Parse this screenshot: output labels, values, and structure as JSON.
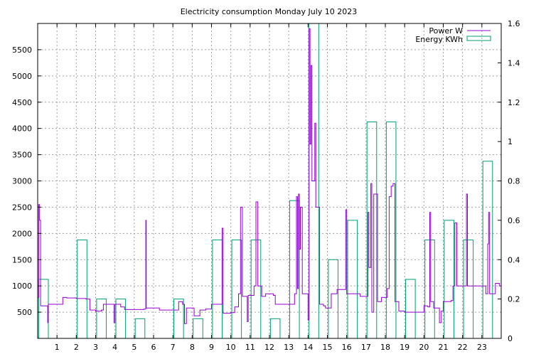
{
  "chart_data": {
    "type": "line",
    "title": "Electricity consumption Monday July 10 2023",
    "xlabel": "",
    "ylabel": "",
    "x_ticks": [
      "1",
      "2",
      "3",
      "4",
      "5",
      "6",
      "7",
      "8",
      "9",
      "10",
      "11",
      "12",
      "13",
      "14",
      "15",
      "16",
      "17",
      "18",
      "19",
      "20",
      "21",
      "22",
      "23"
    ],
    "xlim": [
      0,
      24
    ],
    "ylim_left": [
      0,
      6000
    ],
    "ylim_right": [
      0,
      1.6
    ],
    "y_ticks_left": [
      "500",
      "1000",
      "1500",
      "2000",
      "2500",
      "3000",
      "3500",
      "4000",
      "4500",
      "5000",
      "5500"
    ],
    "y_ticks_right": [
      "0",
      "0.2",
      "0.4",
      "0.6",
      "0.8",
      "1",
      "1.2",
      "1.4",
      "1.6"
    ],
    "grid": true,
    "legend_position": "top-right",
    "colors": {
      "power": "#9400d3",
      "energy": "#009e73"
    },
    "series": [
      {
        "name": "Power W",
        "axis": "left",
        "points": [
          [
            0.0,
            780
          ],
          [
            0.05,
            2550
          ],
          [
            0.1,
            2250
          ],
          [
            0.15,
            620
          ],
          [
            0.5,
            620
          ],
          [
            0.52,
            300
          ],
          [
            0.55,
            650
          ],
          [
            1.0,
            650
          ],
          [
            1.3,
            780
          ],
          [
            1.5,
            770
          ],
          [
            2.0,
            760
          ],
          [
            2.5,
            750
          ],
          [
            2.7,
            540
          ],
          [
            3.0,
            520
          ],
          [
            3.3,
            540
          ],
          [
            3.4,
            650
          ],
          [
            3.9,
            650
          ],
          [
            3.95,
            300
          ],
          [
            4.0,
            650
          ],
          [
            4.3,
            600
          ],
          [
            4.5,
            550
          ],
          [
            5.0,
            550
          ],
          [
            5.5,
            560
          ],
          [
            5.6,
            2250
          ],
          [
            5.62,
            580
          ],
          [
            6.0,
            580
          ],
          [
            6.3,
            540
          ],
          [
            7.0,
            540
          ],
          [
            7.3,
            700
          ],
          [
            7.5,
            650
          ],
          [
            7.6,
            280
          ],
          [
            7.7,
            580
          ],
          [
            8.0,
            580
          ],
          [
            8.1,
            430
          ],
          [
            8.4,
            540
          ],
          [
            8.7,
            560
          ],
          [
            9.0,
            650
          ],
          [
            9.5,
            650
          ],
          [
            9.55,
            2100
          ],
          [
            9.6,
            480
          ],
          [
            9.8,
            480
          ],
          [
            10.0,
            490
          ],
          [
            10.2,
            600
          ],
          [
            10.4,
            850
          ],
          [
            10.5,
            2500
          ],
          [
            10.6,
            800
          ],
          [
            10.8,
            800
          ],
          [
            10.85,
            320
          ],
          [
            10.9,
            820
          ],
          [
            11.1,
            820
          ],
          [
            11.2,
            1000
          ],
          [
            11.3,
            2600
          ],
          [
            11.4,
            1000
          ],
          [
            11.6,
            800
          ],
          [
            11.8,
            850
          ],
          [
            12.2,
            820
          ],
          [
            12.3,
            650
          ],
          [
            13.1,
            650
          ],
          [
            13.3,
            850
          ],
          [
            13.4,
            2700
          ],
          [
            13.45,
            950
          ],
          [
            13.5,
            2750
          ],
          [
            13.55,
            1700
          ],
          [
            13.6,
            2500
          ],
          [
            13.7,
            850
          ],
          [
            13.9,
            850
          ],
          [
            14.0,
            350
          ],
          [
            14.05,
            5900
          ],
          [
            14.1,
            3700
          ],
          [
            14.15,
            5200
          ],
          [
            14.2,
            3000
          ],
          [
            14.3,
            3000
          ],
          [
            14.35,
            4100
          ],
          [
            14.4,
            2500
          ],
          [
            14.5,
            2500
          ],
          [
            14.6,
            650
          ],
          [
            14.8,
            620
          ],
          [
            14.9,
            580
          ],
          [
            15.2,
            850
          ],
          [
            15.5,
            930
          ],
          [
            15.9,
            930
          ],
          [
            15.95,
            2450
          ],
          [
            16.0,
            850
          ],
          [
            16.5,
            850
          ],
          [
            16.7,
            800
          ],
          [
            17.0,
            800
          ],
          [
            17.1,
            2400
          ],
          [
            17.15,
            1350
          ],
          [
            17.25,
            2950
          ],
          [
            17.3,
            500
          ],
          [
            17.4,
            2750
          ],
          [
            17.6,
            700
          ],
          [
            17.7,
            700
          ],
          [
            17.8,
            780
          ],
          [
            18.1,
            950
          ],
          [
            18.2,
            2700
          ],
          [
            18.3,
            2900
          ],
          [
            18.4,
            2950
          ],
          [
            18.5,
            700
          ],
          [
            18.7,
            520
          ],
          [
            19.0,
            500
          ],
          [
            19.2,
            500
          ],
          [
            19.7,
            500
          ],
          [
            20.0,
            620
          ],
          [
            20.2,
            600
          ],
          [
            20.3,
            2400
          ],
          [
            20.35,
            700
          ],
          [
            20.5,
            580
          ],
          [
            20.7,
            580
          ],
          [
            20.8,
            300
          ],
          [
            20.9,
            520
          ],
          [
            21.0,
            700
          ],
          [
            21.4,
            720
          ],
          [
            21.5,
            1000
          ],
          [
            21.6,
            2200
          ],
          [
            21.7,
            1000
          ],
          [
            22.0,
            1000
          ],
          [
            22.2,
            2750
          ],
          [
            22.25,
            1000
          ],
          [
            22.5,
            1000
          ],
          [
            22.6,
            1000
          ],
          [
            23.0,
            1000
          ],
          [
            23.2,
            850
          ],
          [
            23.3,
            1800
          ],
          [
            23.35,
            2400
          ],
          [
            23.4,
            850
          ],
          [
            23.6,
            850
          ],
          [
            23.7,
            1050
          ],
          [
            23.9,
            1000
          ],
          [
            24.0,
            1000
          ]
        ]
      },
      {
        "name": "Energy KWh",
        "axis": "right",
        "bars": [
          [
            0,
            0.3
          ],
          [
            1,
            0
          ],
          [
            2,
            0.5
          ],
          [
            3,
            0.2
          ],
          [
            4,
            0.2
          ],
          [
            5,
            0.1
          ],
          [
            6,
            0
          ],
          [
            7,
            0.2
          ],
          [
            8,
            0.1
          ],
          [
            9,
            0.5
          ],
          [
            10,
            0.5
          ],
          [
            11,
            0.5
          ],
          [
            12,
            0.1
          ],
          [
            13,
            0.7
          ],
          [
            14,
            1.6
          ],
          [
            15,
            0.4
          ],
          [
            16,
            0.6
          ],
          [
            17,
            1.1
          ],
          [
            18,
            1.1
          ],
          [
            19,
            0.3
          ],
          [
            20,
            0.5
          ],
          [
            21,
            0.6
          ],
          [
            22,
            0.5
          ],
          [
            23,
            0.9
          ]
        ]
      }
    ]
  }
}
